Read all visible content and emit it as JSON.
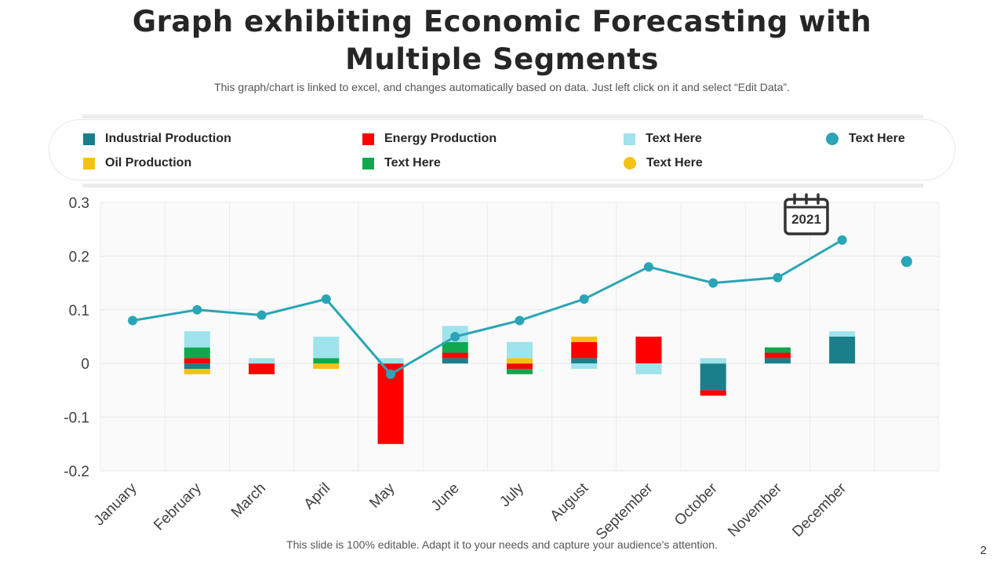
{
  "title_line1": "Graph exhibiting Economic Forecasting with",
  "title_line2": "Multiple Segments",
  "subtitle": "This graph/chart is linked to excel, and changes automatically based on data. Just left click on it and select “Edit Data”.",
  "footer": "This slide is 100% editable. Adapt it to your needs and capture your audience's attention.",
  "page_number": "2",
  "calendar_year": "2021",
  "colors": {
    "industrial": "#1a7f8a",
    "energy": "#ff0000",
    "text_light": "#9fe3ec",
    "oil": "#f5c20f",
    "text_green": "#0fa84f",
    "line": "#2aa5b5",
    "dot_yellow": "#f5c20f"
  },
  "legend": [
    {
      "label": "Industrial Production",
      "kind": "square",
      "color": "#1a7f8a"
    },
    {
      "label": "Energy Production",
      "kind": "square",
      "color": "#ff0000"
    },
    {
      "label": "Text Here",
      "kind": "square",
      "color": "#9fe3ec"
    },
    {
      "label": "Text Here",
      "kind": "circle",
      "color": "#2aa5b5"
    },
    {
      "label": "Oil Production",
      "kind": "square",
      "color": "#f5c20f"
    },
    {
      "label": "Text Here",
      "kind": "square",
      "color": "#0fa84f"
    },
    {
      "label": "Text Here",
      "kind": "circle",
      "color": "#f5c20f"
    }
  ],
  "chart_data": {
    "type": "bar",
    "stacked": true,
    "categories": [
      "January",
      "February",
      "March",
      "April",
      "May",
      "June",
      "July",
      "August",
      "September",
      "October",
      "November",
      "December",
      ""
    ],
    "ylim": [
      -0.2,
      0.3
    ],
    "yticks": [
      "0.3",
      "0.2",
      "0.1",
      "0",
      "-0.1",
      "-0.2"
    ],
    "ytick_values": [
      0.3,
      0.2,
      0.1,
      0,
      -0.1,
      -0.2
    ],
    "series": [
      {
        "name": "Industrial Production",
        "color": "#1a7f8a",
        "values": [
          0,
          -0.01,
          0,
          0,
          0,
          0.01,
          0,
          0.01,
          0,
          -0.05,
          0.01,
          0.05,
          0
        ]
      },
      {
        "name": "Energy Production",
        "color": "#ff0000",
        "values": [
          0,
          0.01,
          -0.02,
          0,
          -0.15,
          0.01,
          -0.01,
          0.03,
          0.05,
          -0.01,
          0.01,
          0,
          0
        ]
      },
      {
        "name": "Oil Production",
        "color": "#f5c20f",
        "values": [
          0,
          -0.01,
          0,
          -0.01,
          0,
          0,
          0.01,
          0.01,
          0,
          0,
          0,
          0,
          0
        ]
      },
      {
        "name": "Text Here",
        "color": "#0fa84f",
        "values": [
          0,
          0.02,
          0,
          0.01,
          0,
          0.02,
          -0.01,
          0,
          0,
          0,
          0.01,
          0,
          0
        ]
      },
      {
        "name": "Text Here",
        "color": "#9fe3ec",
        "values": [
          0,
          0.03,
          0.01,
          0.04,
          0.01,
          0.03,
          0.03,
          -0.01,
          -0.02,
          0.01,
          0,
          0.01,
          0
        ]
      }
    ],
    "line": {
      "name": "Text Here",
      "color": "#2aa5b5",
      "values": [
        0.08,
        0.1,
        0.09,
        0.12,
        -0.02,
        0.05,
        0.08,
        0.12,
        0.18,
        0.15,
        0.16,
        0.23
      ]
    },
    "extra_point": {
      "name": "Text Here",
      "color": "#2aa5b5",
      "value": 0.19
    }
  }
}
